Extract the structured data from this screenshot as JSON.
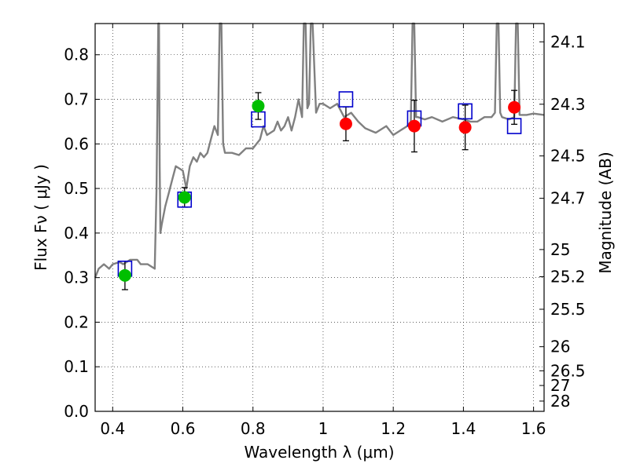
{
  "chart_data": {
    "type": "scatter",
    "title": "",
    "xlabel": "Wavelength  λ (μm)",
    "ylabel": "Flux  Fν  ( μJy )",
    "ylabel_right": "Magnitude (AB)",
    "xlim": [
      0.35,
      1.63
    ],
    "ylim": [
      0.0,
      0.87
    ],
    "grid": true,
    "x_ticks": [
      0.4,
      0.6,
      0.8,
      1.0,
      1.2,
      1.4,
      1.6
    ],
    "x_tick_labels": [
      "0.4",
      "0.6",
      "0.8",
      "1",
      "1.2",
      "1.4",
      "1.6"
    ],
    "y_ticks": [
      0.0,
      0.1,
      0.2,
      0.3,
      0.4,
      0.5,
      0.6,
      0.7,
      0.8
    ],
    "y_tick_labels": [
      "0.0",
      "0.1",
      "0.2",
      "0.3",
      "0.4",
      "0.5",
      "0.6",
      "0.7",
      "0.8"
    ],
    "right_ticks": [
      {
        "label": "24.1",
        "flux": 0.829
      },
      {
        "label": "24.3",
        "flux": 0.689
      },
      {
        "label": "24.5",
        "flux": 0.573
      },
      {
        "label": "24.7",
        "flux": 0.478
      },
      {
        "label": "25",
        "flux": 0.363
      },
      {
        "label": "25.2",
        "flux": 0.302
      },
      {
        "label": "25.5",
        "flux": 0.229
      },
      {
        "label": "26",
        "flux": 0.145
      },
      {
        "label": "26.5",
        "flux": 0.091
      },
      {
        "label": "27",
        "flux": 0.058
      },
      {
        "label": "28",
        "flux": 0.023
      }
    ],
    "series": [
      {
        "name": "model SED",
        "kind": "line",
        "color": "#808080",
        "x": [
          0.35,
          0.36,
          0.375,
          0.39,
          0.4,
          0.42,
          0.43,
          0.45,
          0.47,
          0.48,
          0.5,
          0.51,
          0.52,
          0.525,
          0.53,
          0.532,
          0.534,
          0.536,
          0.54,
          0.55,
          0.56,
          0.57,
          0.58,
          0.6,
          0.61,
          0.62,
          0.63,
          0.64,
          0.65,
          0.66,
          0.67,
          0.68,
          0.69,
          0.7,
          0.705,
          0.71,
          0.715,
          0.72,
          0.74,
          0.76,
          0.78,
          0.8,
          0.82,
          0.83,
          0.84,
          0.86,
          0.87,
          0.88,
          0.89,
          0.9,
          0.91,
          0.92,
          0.93,
          0.94,
          0.945,
          0.95,
          0.955,
          0.96,
          0.965,
          0.97,
          0.98,
          0.99,
          1.0,
          1.02,
          1.04,
          1.06,
          1.08,
          1.1,
          1.12,
          1.15,
          1.18,
          1.2,
          1.22,
          1.24,
          1.25,
          1.255,
          1.26,
          1.265,
          1.27,
          1.29,
          1.31,
          1.34,
          1.37,
          1.4,
          1.42,
          1.44,
          1.46,
          1.48,
          1.49,
          1.495,
          1.5,
          1.505,
          1.51,
          1.53,
          1.545,
          1.55,
          1.555,
          1.56,
          1.58,
          1.6,
          1.63
        ],
        "y": [
          0.3,
          0.32,
          0.33,
          0.32,
          0.33,
          0.335,
          0.33,
          0.34,
          0.34,
          0.33,
          0.33,
          0.325,
          0.32,
          0.5,
          0.87,
          0.87,
          0.55,
          0.4,
          0.42,
          0.46,
          0.49,
          0.52,
          0.55,
          0.54,
          0.5,
          0.55,
          0.57,
          0.56,
          0.58,
          0.57,
          0.58,
          0.61,
          0.64,
          0.62,
          0.87,
          0.87,
          0.6,
          0.58,
          0.58,
          0.575,
          0.59,
          0.59,
          0.61,
          0.64,
          0.62,
          0.63,
          0.65,
          0.63,
          0.64,
          0.66,
          0.63,
          0.66,
          0.7,
          0.66,
          0.87,
          0.87,
          0.68,
          0.69,
          0.87,
          0.87,
          0.67,
          0.69,
          0.69,
          0.68,
          0.69,
          0.66,
          0.67,
          0.65,
          0.635,
          0.625,
          0.64,
          0.62,
          0.63,
          0.64,
          0.65,
          0.87,
          0.87,
          0.66,
          0.66,
          0.655,
          0.66,
          0.65,
          0.66,
          0.655,
          0.65,
          0.65,
          0.66,
          0.66,
          0.67,
          0.87,
          0.87,
          0.67,
          0.66,
          0.655,
          0.66,
          0.87,
          0.87,
          0.665,
          0.665,
          0.668,
          0.665
        ]
      },
      {
        "name": "green photometry",
        "kind": "circle",
        "color": "#00bf00",
        "x": [
          0.435,
          0.605,
          0.815
        ],
        "y": [
          0.305,
          0.48,
          0.685
        ],
        "yerr": [
          0.032,
          0.022,
          0.03
        ]
      },
      {
        "name": "red photometry",
        "kind": "circle",
        "color": "#ff0000",
        "x": [
          1.065,
          1.26,
          1.405,
          1.545
        ],
        "y": [
          0.645,
          0.64,
          0.637,
          0.682
        ],
        "yerr": [
          0.038,
          0.058,
          0.05,
          0.038
        ]
      },
      {
        "name": "model fluxes",
        "kind": "square",
        "color": "#0000cc",
        "x": [
          0.435,
          0.605,
          0.815,
          1.065,
          1.26,
          1.405,
          1.545
        ],
        "y": [
          0.32,
          0.475,
          0.655,
          0.7,
          0.657,
          0.673,
          0.64
        ]
      }
    ]
  }
}
